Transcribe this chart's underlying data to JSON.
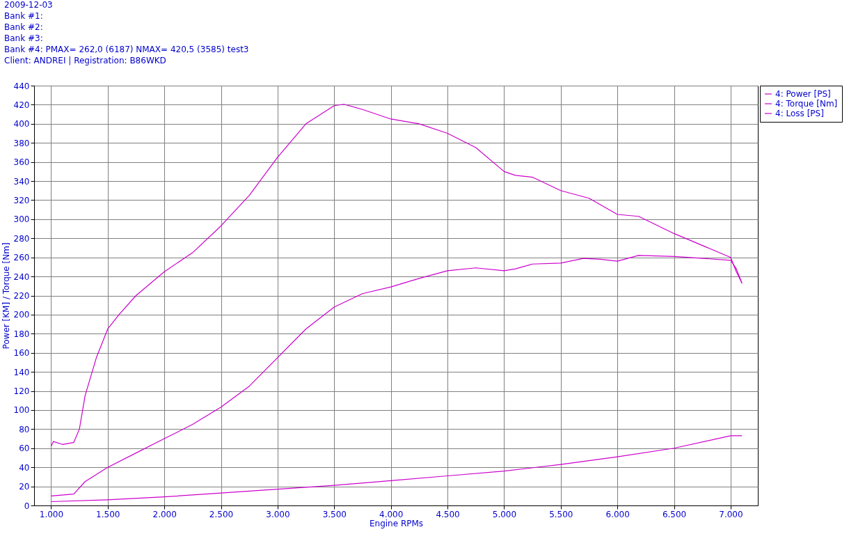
{
  "chart_data": {
    "type": "line",
    "xlabel": "Engine RPMs",
    "ylabel": "Power [KM] / Torque [Nm]",
    "annotations": [
      "2009-12-03",
      "Bank #1:",
      "Bank #2:",
      "Bank #3:",
      "Bank #4: PMAX= 262,0 (6187)    NMAX= 420,5 (3585)    test3",
      "Client:  ANDREI | Registration:  B86WKD"
    ],
    "xlim": [
      850,
      7240
    ],
    "ylim": [
      0,
      440
    ],
    "xticks": [
      {
        "value": 1000,
        "label": "1.000"
      },
      {
        "value": 1500,
        "label": "1.500"
      },
      {
        "value": 2000,
        "label": "2.000"
      },
      {
        "value": 2500,
        "label": "2.500"
      },
      {
        "value": 3000,
        "label": "3.000"
      },
      {
        "value": 3500,
        "label": "3.500"
      },
      {
        "value": 4000,
        "label": "4.000"
      },
      {
        "value": 4500,
        "label": "4.500"
      },
      {
        "value": 5000,
        "label": "5.000"
      },
      {
        "value": 5500,
        "label": "5.500"
      },
      {
        "value": 6000,
        "label": "6.000"
      },
      {
        "value": 6500,
        "label": "6.500"
      },
      {
        "value": 7000,
        "label": "7.000"
      }
    ],
    "yticks": [
      0,
      20,
      40,
      60,
      80,
      100,
      120,
      140,
      160,
      180,
      200,
      220,
      240,
      260,
      280,
      300,
      320,
      340,
      360,
      380,
      400,
      420,
      440
    ],
    "grid": true,
    "legend": "top right",
    "marker": "none",
    "line_style": "solid",
    "series": [
      {
        "name": "4: Power [PS]",
        "color": "#cc00cc",
        "x": [
          1000,
          1200,
          1300,
          1500,
          1750,
          2000,
          2250,
          2500,
          2750,
          3000,
          3250,
          3500,
          3750,
          4000,
          4250,
          4500,
          4750,
          5000,
          5100,
          5250,
          5500,
          5700,
          5850,
          6000,
          6187,
          6500,
          7000,
          7050,
          7100
        ],
        "values": [
          10,
          12,
          25,
          40,
          55,
          70,
          85,
          103,
          125,
          155,
          185,
          208,
          222,
          229,
          238,
          246,
          249,
          246,
          248,
          253,
          254,
          259,
          258,
          256,
          262,
          261,
          257,
          248,
          233
        ]
      },
      {
        "name": "4: Torque [Nm]",
        "color": "#cc00cc",
        "x": [
          1000,
          1020,
          1100,
          1200,
          1250,
          1300,
          1400,
          1500,
          1600,
          1750,
          2000,
          2250,
          2500,
          2750,
          3000,
          3250,
          3500,
          3585,
          3750,
          4000,
          4250,
          4500,
          4750,
          5000,
          5100,
          5250,
          5500,
          5750,
          6000,
          6187,
          6500,
          7000,
          7050,
          7100
        ],
        "values": [
          62,
          67,
          64,
          66,
          80,
          115,
          155,
          185,
          200,
          220,
          245,
          265,
          293,
          325,
          365,
          400,
          419,
          420.5,
          415,
          405,
          400,
          390,
          375,
          350,
          346,
          344,
          330,
          322,
          305,
          303,
          285,
          260,
          245,
          233
        ]
      },
      {
        "name": "4: Loss [PS]",
        "color": "#cc00cc",
        "x": [
          1000,
          1500,
          2000,
          2500,
          3000,
          3500,
          4000,
          4500,
          5000,
          5500,
          6000,
          6500,
          7000,
          7100
        ],
        "values": [
          4,
          6,
          9,
          13,
          17,
          21,
          26,
          31,
          36,
          43,
          51,
          60,
          73,
          73
        ]
      }
    ]
  }
}
